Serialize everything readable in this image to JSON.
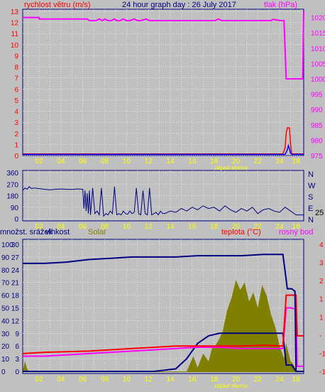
{
  "colors": {
    "background": "#c0c0c0",
    "plot_bg": "#c0c0c0",
    "grid": "#ffffff",
    "wind_speed": "#ff0000",
    "wind_speed_gust": "#0000ff",
    "pressure": "#ff00ff",
    "direction": "#000080",
    "humidity": "#000080",
    "solar": "#808000",
    "temperature": "#ff0000",
    "dewpoint": "#ff00ff",
    "hour_labels": "#ffff00",
    "sunset": "#ffff00",
    "left_axis": "#000080",
    "dark_axis": "#000080"
  },
  "header": {
    "title": "24 hour graph day : 26 July 2017",
    "wind_label": "rychlost větru (m/s)",
    "pressure_label": "tlak (hPa)"
  },
  "panel2": {
    "n": "N",
    "w": "W",
    "s": "S",
    "e": "E",
    "n2": "N",
    "current_value": "25"
  },
  "panel3": {
    "rain_label": "množst. srážek",
    "humidity_label": "vlhkost",
    "solar_label": "Solar",
    "temp_label": "teplota (°C)",
    "dew_label": "rosný bod"
  },
  "sunset_label": "západ slunce",
  "chart_data": [
    {
      "type": "line",
      "name": "wind-pressure",
      "x_ticks": [
        "02",
        "04",
        "06",
        "08",
        "10",
        "12",
        "14",
        "16",
        "18",
        "20",
        "22",
        "24",
        "18"
      ],
      "y_left": {
        "label": "rychlost větru (m/s)",
        "ticks": [
          0,
          1,
          2,
          3,
          4,
          5,
          6,
          7,
          8,
          9,
          10,
          11,
          12,
          13
        ],
        "range": [
          0,
          13
        ]
      },
      "y_right": {
        "label": "tlak (hPa)",
        "ticks": [
          975,
          980,
          985,
          990,
          995,
          1000,
          1005,
          1010,
          1015,
          1020
        ],
        "range": [
          975,
          1022
        ]
      },
      "series": [
        {
          "key": "pressure",
          "axis": "right",
          "x": [
            0,
            0.6,
            1.5,
            1.5,
            5.9,
            6.1,
            6.7,
            7.0,
            7.3,
            7.5,
            7.8,
            8.1,
            8.4,
            8.6,
            8.9,
            9.2,
            9.5,
            9.8,
            10.2,
            10.5,
            10.8,
            11.3,
            11.6,
            11.9,
            12.2,
            17.6,
            17.9,
            18.2,
            22.7,
            22.9,
            23.2,
            23.6,
            23.7,
            23.9,
            24.1,
            24.3,
            24.6,
            24.8,
            25.4,
            25.6,
            25.7
          ],
          "y": [
            1020,
            1020,
            1020,
            1019.5,
            1019.5,
            1019,
            1019,
            1019.5,
            1019,
            1019.5,
            1019,
            1019,
            1019.5,
            1019,
            1019,
            1019.5,
            1019,
            1019,
            1019.5,
            1019,
            1019,
            1019.5,
            1019,
            1019,
            1019,
            1019,
            1019.5,
            1019,
            1019,
            1019.4,
            1019.2,
            1019,
            1019,
            1019,
            1000,
            1000,
            1000,
            1000,
            1000,
            1000,
            1022
          ]
        },
        {
          "key": "wind_speed",
          "axis": "left",
          "x": [
            0,
            23.8,
            24.0,
            24.1,
            24.2,
            24.4,
            24.5,
            24.6,
            24.7,
            25.7
          ],
          "y": [
            0.15,
            0.15,
            0.7,
            2,
            2.5,
            2.5,
            1,
            0.15,
            0.15,
            0.15
          ]
        },
        {
          "key": "wind_speed_gust",
          "axis": "left",
          "x": [
            0,
            24.0,
            24.2,
            24.3,
            24.4,
            24.5,
            24.6,
            25.7
          ],
          "y": [
            0.1,
            0.1,
            0.5,
            0.9,
            0.6,
            0.2,
            0.1,
            0.1
          ]
        }
      ]
    },
    {
      "type": "line",
      "name": "wind-direction",
      "x_ticks": [
        "02",
        "04",
        "06",
        "08",
        "10",
        "12",
        "14",
        "16",
        "18",
        "20",
        "22",
        "24",
        "18"
      ],
      "y_left": {
        "ticks": [
          0,
          90,
          180,
          270,
          360
        ],
        "range": [
          0,
          360
        ]
      },
      "y_right": {
        "ticks": [
          "N",
          "W",
          "S",
          "E",
          "N"
        ]
      },
      "series": [
        {
          "key": "direction",
          "x": [
            0,
            0.2,
            0.4,
            0.6,
            0.8,
            1.0,
            1.5,
            2.0,
            2.5,
            3.0,
            3.5,
            4.0,
            4.5,
            5.0,
            5.5,
            5.6,
            5.7,
            5.8,
            5.9,
            6.0,
            6.1,
            6.2,
            6.4,
            6.6,
            6.8,
            7.0,
            7.2,
            7.4,
            7.6,
            7.8,
            8.0,
            8.2,
            8.4,
            8.6,
            8.8,
            9.0,
            9.2,
            9.4,
            9.6,
            9.8,
            10.0,
            10.2,
            10.4,
            10.6,
            10.8,
            11.0,
            11.2,
            11.4,
            11.6,
            11.8,
            12.0,
            12.2,
            12.4,
            12.6,
            12.8,
            13.0,
            13.5,
            14.0,
            14.5,
            15.0,
            15.5,
            16.0,
            16.5,
            17.0,
            17.5,
            18.0,
            18.5,
            19.0,
            19.5,
            20.0,
            20.5,
            21.0,
            21.5,
            22.0,
            22.5,
            23.0,
            23.5,
            24.0,
            24.5,
            25.0,
            25.7
          ],
          "y": [
            220,
            240,
            230,
            250,
            235,
            240,
            235,
            230,
            225,
            230,
            232,
            230,
            228,
            232,
            230,
            80,
            220,
            60,
            200,
            40,
            220,
            30,
            240,
            40,
            60,
            30,
            240,
            20,
            40,
            30,
            60,
            40,
            250,
            30,
            40,
            30,
            60,
            40,
            35,
            60,
            40,
            50,
            240,
            40,
            30,
            220,
            40,
            30,
            240,
            30,
            40,
            50,
            30,
            60,
            40,
            40,
            60,
            50,
            80,
            60,
            90,
            70,
            100,
            80,
            90,
            60,
            100,
            70,
            50,
            80,
            60,
            90,
            40,
            70,
            80,
            60,
            50,
            90,
            60,
            30,
            30
          ]
        }
      ]
    },
    {
      "type": "line",
      "name": "temp-humidity-solar",
      "x_ticks": [
        "02",
        "04",
        "06",
        "08",
        "10",
        "12",
        "14",
        "16",
        "18",
        "20",
        "22",
        "24",
        "18"
      ],
      "y_left": {
        "label": "vlhkost",
        "ticks_inner": [
          0,
          3,
          6,
          9,
          12,
          15,
          18,
          21,
          24,
          27,
          30
        ],
        "ticks_outer": [
          0,
          10,
          20,
          30,
          40,
          50,
          60,
          70,
          80,
          90,
          100
        ]
      },
      "y_right": {
        "label": "teplota (°C)",
        "ticks": [
          "-1",
          "-1",
          "-",
          "1",
          "1",
          "2",
          "3",
          "4"
        ]
      },
      "series": [
        {
          "key": "humidity",
          "x": [
            0,
            2,
            4,
            6,
            8,
            10,
            12,
            14,
            16,
            18,
            20,
            22,
            23.3,
            23.8,
            24.2,
            24.6,
            24.9,
            25.0,
            25.7
          ],
          "y": [
            85,
            85,
            86,
            88,
            89,
            90,
            90,
            90,
            91,
            91,
            91,
            92,
            92,
            92,
            65,
            65,
            63,
            0,
            0
          ]
        },
        {
          "key": "rain_low",
          "x": [
            0,
            8,
            12,
            14,
            15,
            16,
            17,
            18,
            19,
            20,
            21,
            22,
            23,
            23.8,
            24.1,
            24.2,
            24.5,
            24.6,
            25.0,
            25.7
          ],
          "y": [
            0,
            0,
            0,
            2,
            10,
            22,
            28,
            30,
            30,
            30,
            30,
            30,
            30,
            30,
            5,
            5,
            5,
            5,
            0,
            0
          ]
        },
        {
          "key": "temperature",
          "x": [
            0,
            2,
            4,
            6,
            8,
            10,
            12,
            14,
            16,
            18,
            20,
            22,
            23.8,
            24.1,
            24.5,
            25.0,
            25.1,
            25.7
          ],
          "y": [
            14,
            15,
            15.5,
            16,
            17,
            18,
            19,
            20,
            20,
            20,
            20,
            20.5,
            20,
            60,
            60,
            60,
            28,
            28
          ]
        },
        {
          "key": "dewpoint",
          "x": [
            0,
            2,
            4,
            6,
            8,
            10,
            12,
            14,
            16,
            18,
            20,
            22,
            23.8,
            24.1,
            24.5,
            25.0,
            25.1,
            25.7
          ],
          "y": [
            12,
            12,
            13,
            14,
            15,
            16,
            17,
            18,
            19,
            19,
            18,
            18,
            18,
            50,
            50,
            49,
            4,
            4
          ]
        },
        {
          "key": "solar",
          "type": "area",
          "x": [
            0,
            0.2,
            0.4,
            0.6,
            1.0,
            5,
            10,
            13,
            15,
            15.3,
            15.6,
            16,
            16.5,
            17,
            17.3,
            17.6,
            18,
            18.3,
            18.7,
            19.1,
            19.5,
            19.9,
            20.3,
            20.7,
            21.1,
            21.5,
            21.9,
            22.3,
            22.7,
            23.1,
            23.5,
            23.9,
            24.1,
            24.3,
            24.5,
            24.8,
            25.0,
            25.7
          ],
          "y": [
            0,
            8,
            2,
            0,
            0,
            0,
            0,
            0,
            0,
            6,
            12,
            3,
            14,
            8,
            18,
            20,
            26,
            32,
            48,
            58,
            72,
            64,
            70,
            55,
            62,
            50,
            68,
            60,
            45,
            35,
            20,
            10,
            22,
            15,
            8,
            5,
            0,
            0
          ]
        }
      ]
    }
  ]
}
